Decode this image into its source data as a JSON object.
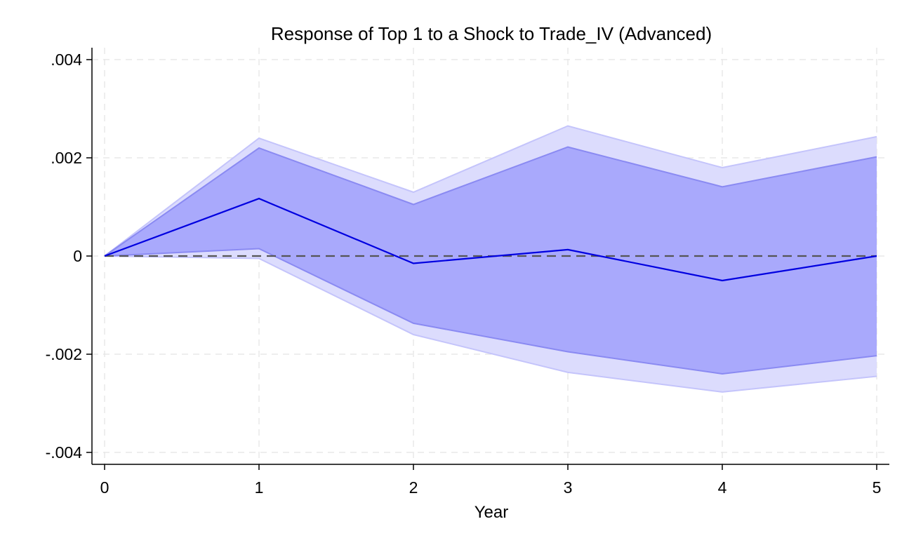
{
  "chart_data": {
    "type": "area",
    "title": "Response of Top 1 to a Shock to Trade_IV (Advanced)",
    "xlabel": "Year",
    "ylabel": "",
    "x": [
      0,
      1,
      2,
      3,
      4,
      5
    ],
    "xlim": [
      0,
      5
    ],
    "ylim": [
      -0.004,
      0.004
    ],
    "xticks": [
      0,
      1,
      2,
      3,
      4,
      5
    ],
    "xtick_labels": [
      "0",
      "1",
      "2",
      "3",
      "4",
      "5"
    ],
    "yticks": [
      -0.004,
      -0.002,
      0,
      0.002,
      0.004
    ],
    "ytick_labels": [
      "-.004",
      "-.002",
      "0",
      ".002",
      ".004"
    ],
    "grid": true,
    "series": [
      {
        "role": "outer-band",
        "lower": [
          0,
          -5e-05,
          -0.0016,
          -0.00237,
          -0.00277,
          -0.00245
        ],
        "upper": [
          0,
          0.0024,
          0.0013,
          0.00265,
          0.0018,
          0.00243
        ]
      },
      {
        "role": "inner-band",
        "lower": [
          0,
          0.00015,
          -0.00137,
          -0.00195,
          -0.0024,
          -0.00203
        ],
        "upper": [
          0,
          0.0022,
          0.00105,
          0.00222,
          0.00141,
          0.00202
        ]
      },
      {
        "role": "line",
        "values": [
          0,
          0.00117,
          -0.00015,
          0.00013,
          -0.0005,
          0
        ]
      }
    ],
    "reference_line": {
      "y": 0,
      "style": "dashed"
    },
    "colors": {
      "outer_band": "#dcdcfd",
      "inner_band": "#a9a9fc",
      "line": "#0000e0",
      "band_edge_outer": "#c4c4fb",
      "band_edge_inner": "#8a8af2",
      "reference": "#555555",
      "grid": "#e8e8e8",
      "axis": "#000000"
    }
  }
}
